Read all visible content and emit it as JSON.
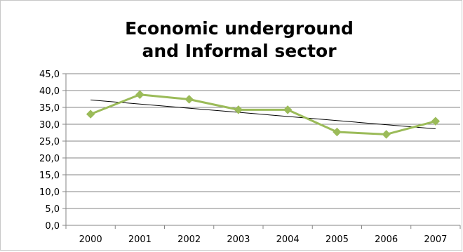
{
  "chart_data": {
    "type": "line",
    "title_lines": [
      "Economic underground",
      "and Informal sector"
    ],
    "categories": [
      "2000",
      "2001",
      "2002",
      "2003",
      "2004",
      "2005",
      "2006",
      "2007"
    ],
    "series": [
      {
        "values": [
          33.0,
          38.8,
          37.4,
          34.3,
          34.3,
          27.7,
          27.0,
          30.9
        ],
        "color": "#9bbb59"
      }
    ],
    "trendline": {
      "type": "linear",
      "color": "#000000"
    },
    "ylim": [
      0,
      45
    ],
    "y_step": 5,
    "y_tick_labels": [
      "0,0",
      "5,0",
      "10,0",
      "15,0",
      "20,0",
      "25,0",
      "30,0",
      "35,0",
      "40,0",
      "45,0"
    ],
    "grid": true,
    "gridline_color": "#868686",
    "legend": "none",
    "xlabel": "",
    "ylabel": ""
  }
}
